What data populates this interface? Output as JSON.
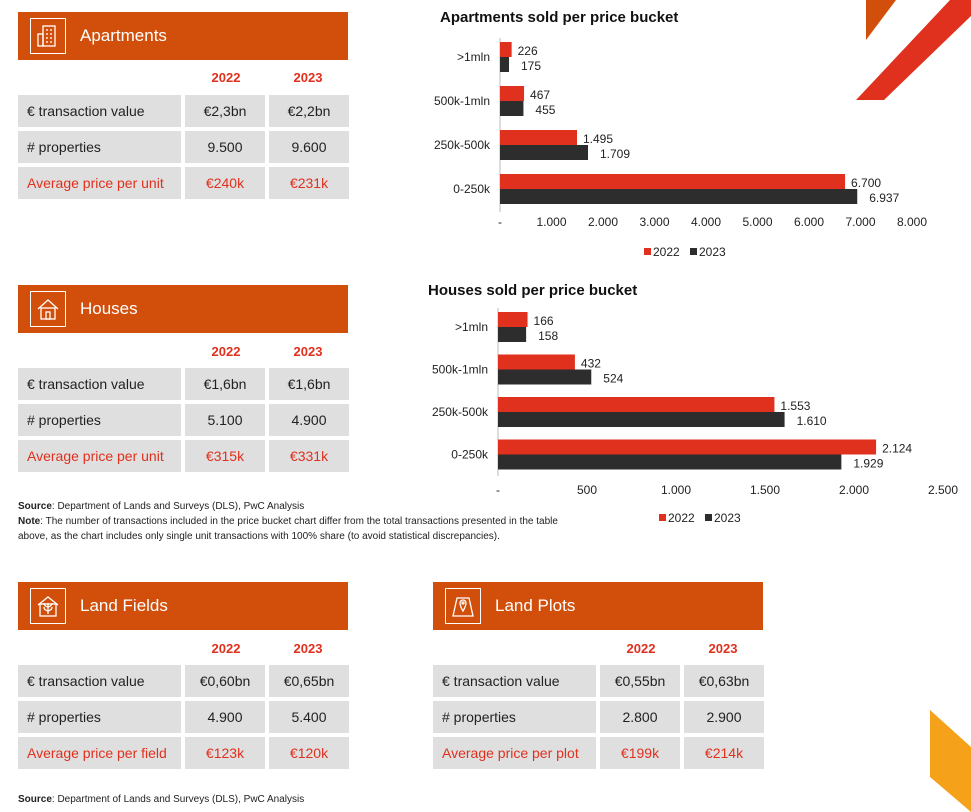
{
  "apartments": {
    "title": "Apartments",
    "years": [
      "2022",
      "2023"
    ],
    "rows": [
      {
        "label": "€ transaction value",
        "v2022": "€2,3bn",
        "v2023": "€2,2bn",
        "highlight": false
      },
      {
        "label": "# properties",
        "v2022": "9.500",
        "v2023": "9.600",
        "highlight": false
      },
      {
        "label": "Average price per unit",
        "v2022": "€240k",
        "v2023": "€231k",
        "highlight": true
      }
    ]
  },
  "houses": {
    "title": "Houses",
    "years": [
      "2022",
      "2023"
    ],
    "rows": [
      {
        "label": "€ transaction value",
        "v2022": "€1,6bn",
        "v2023": "€1,6bn",
        "highlight": false
      },
      {
        "label": "# properties",
        "v2022": "5.100",
        "v2023": "4.900",
        "highlight": false
      },
      {
        "label": "Average price per unit",
        "v2022": "€315k",
        "v2023": "€331k",
        "highlight": true
      }
    ]
  },
  "land_fields": {
    "title": "Land Fields",
    "years": [
      "2022",
      "2023"
    ],
    "rows": [
      {
        "label": "€ transaction value",
        "v2022": "€0,60bn",
        "v2023": "€0,65bn",
        "highlight": false
      },
      {
        "label": "# properties",
        "v2022": "4.900",
        "v2023": "5.400",
        "highlight": false
      },
      {
        "label": "Average price per field",
        "v2022": "€123k",
        "v2023": "€120k",
        "highlight": true
      }
    ]
  },
  "land_plots": {
    "title": "Land Plots",
    "years": [
      "2022",
      "2023"
    ],
    "rows": [
      {
        "label": "€ transaction value",
        "v2022": "€0,55bn",
        "v2023": "€0,63bn",
        "highlight": false
      },
      {
        "label": "# properties",
        "v2022": "2.800",
        "v2023": "2.900",
        "highlight": false
      },
      {
        "label": "Average price per plot",
        "v2022": "€199k",
        "v2023": "€214k",
        "highlight": true
      }
    ]
  },
  "source_note": {
    "source_label": "Source",
    "source_text": ": Department of Lands and Surveys (DLS), PwC Analysis",
    "note_label": "Note",
    "note_text": ": The number of transactions included in the price bucket chart differ from the total transactions presented in the table above, as the chart includes only single unit transactions with 100% share (to avoid statistical discrepancies)."
  },
  "bottom_source": {
    "source_label": "Source",
    "source_text": ": Department of Lands and Surveys (DLS), PwC Analysis"
  },
  "colors": {
    "header_orange": "#d24f0b",
    "accent_red": "#e0301e",
    "series_2022": "#e0301e",
    "series_2023": "#2d2d2d",
    "cell_grey": "#dfdfdf"
  },
  "chart_data": [
    {
      "type": "bar",
      "orientation": "horizontal",
      "title": "Apartments sold per price bucket",
      "categories": [
        ">1mln",
        "500k-1mln",
        "250k-500k",
        "0-250k"
      ],
      "series": [
        {
          "name": "2022",
          "values": [
            226,
            467,
            1495,
            6700
          ],
          "labels": [
            "226",
            "467",
            "1.495",
            "6.700"
          ]
        },
        {
          "name": "2023",
          "values": [
            175,
            455,
            1709,
            6937
          ],
          "labels": [
            "175",
            "455",
            "1.709",
            "6.937"
          ]
        }
      ],
      "xlim": [
        0,
        8000
      ],
      "ticks": [
        0,
        1000,
        2000,
        3000,
        4000,
        5000,
        6000,
        7000,
        8000
      ],
      "tick_labels": [
        "-",
        "1.000",
        "2.000",
        "3.000",
        "4.000",
        "5.000",
        "6.000",
        "7.000",
        "8.000"
      ],
      "legend": [
        "2022",
        "2023"
      ],
      "legend_position": "bottom"
    },
    {
      "type": "bar",
      "orientation": "horizontal",
      "title": "Houses sold per price bucket",
      "categories": [
        ">1mln",
        "500k-1mln",
        "250k-500k",
        "0-250k"
      ],
      "series": [
        {
          "name": "2022",
          "values": [
            166,
            432,
            1553,
            2124
          ],
          "labels": [
            "166",
            "432",
            "1.553",
            "2.124"
          ]
        },
        {
          "name": "2023",
          "values": [
            158,
            524,
            1610,
            1929
          ],
          "labels": [
            "158",
            "524",
            "1.610",
            "1.929"
          ]
        }
      ],
      "xlim": [
        0,
        2500
      ],
      "ticks": [
        0,
        500,
        1000,
        1500,
        2000,
        2500
      ],
      "tick_labels": [
        "-",
        "500",
        "1.000",
        "1.500",
        "2.000",
        "2.500"
      ],
      "legend": [
        "2022",
        "2023"
      ],
      "legend_position": "bottom"
    }
  ]
}
